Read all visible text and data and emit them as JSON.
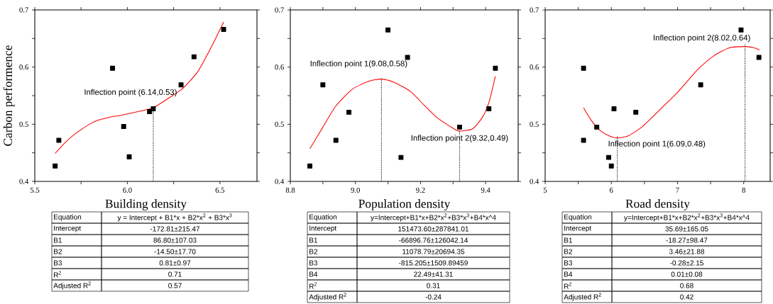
{
  "chart_data": [
    {
      "type": "scatter",
      "xlabel": "Building density",
      "ylabel": "Carbon performence",
      "xlim": [
        5.5,
        6.7
      ],
      "ylim": [
        0.4,
        0.7
      ],
      "xticks": [
        5.5,
        {
          "value": 5.75,
          "label": null
        },
        {
          "value": 6,
          "label": "6.0"
        },
        {
          "value": 6.25,
          "label": null
        },
        6.5
      ],
      "yticks": [
        0.4,
        {
          "value": 0.45,
          "label": null
        },
        0.5,
        {
          "value": 0.55,
          "label": null
        },
        0.6,
        {
          "value": 0.65,
          "label": null
        },
        0.7
      ],
      "series": [
        {
          "type": "scatter",
          "color": "#000000",
          "marker": "square",
          "x": [
            5.61,
            5.63,
            5.92,
            5.98,
            6.01,
            6.12,
            6.14,
            6.29,
            6.36,
            6.52
          ],
          "values": [
            0.427,
            0.472,
            0.598,
            0.496,
            0.443,
            0.522,
            0.527,
            0.569,
            0.618,
            0.666
          ]
        },
        {
          "type": "line",
          "color": "#ff0000",
          "marker": "none",
          "x": [
            5.61,
            5.67,
            5.73,
            5.79,
            5.84,
            5.9,
            5.97,
            6.07,
            6.14,
            6.22,
            6.3,
            6.38,
            6.45,
            6.52
          ],
          "values": [
            0.449,
            0.47,
            0.486,
            0.499,
            0.507,
            0.512,
            0.516,
            0.523,
            0.529,
            0.545,
            0.563,
            0.592,
            0.633,
            0.679
          ]
        },
        {
          "type": "line",
          "color": "#000000",
          "marker": "none",
          "line_style": "dotted",
          "x": [
            6.14,
            6.14
          ],
          "values": [
            0.4,
            0.53
          ]
        }
      ],
      "annotations": [
        {
          "text": "Inflection point (6.14,0.53)",
          "x": 6.14,
          "y": 0.53
        },
        "Equation",
        "y = Intercept + B1*x + B2*x$^{2}$ + B3*x$^{3}$",
        "Intercept",
        "-172.81±215.47",
        "B1",
        "86.80±107.03",
        "B2",
        "-14.50±17.70",
        "B3",
        "0.81±0.97",
        "R$^{2}$",
        "0.71",
        "Adjusted R$^{2}$",
        "0.57"
      ]
    },
    {
      "type": "scatter",
      "xlabel": "Population density",
      "xlim": [
        8.8,
        9.5
      ],
      "ylim": [
        0.4,
        0.7
      ],
      "xticks": [
        8.8,
        {
          "value": 8.9,
          "label": null
        },
        {
          "value": 9,
          "label": "9.0"
        },
        {
          "value": 9.1,
          "label": null
        },
        9.2,
        {
          "value": 9.3,
          "label": null
        },
        9.4
      ],
      "yticks": [
        0.4,
        {
          "value": 0.45,
          "label": null
        },
        0.5,
        {
          "value": 0.55,
          "label": null
        },
        0.6,
        {
          "value": 0.65,
          "label": null
        },
        0.7
      ],
      "series": [
        {
          "type": "scatter",
          "color": "#000000",
          "marker": "square",
          "x": [
            8.86,
            8.9,
            8.94,
            8.98,
            9.1,
            9.14,
            9.16,
            9.32,
            9.41,
            9.43
          ],
          "values": [
            0.427,
            0.569,
            0.472,
            0.521,
            0.665,
            0.442,
            0.617,
            0.495,
            0.527,
            0.598
          ]
        },
        {
          "type": "line",
          "color": "#ff0000",
          "marker": "none",
          "x": [
            8.86,
            8.9,
            8.94,
            8.99,
            9.04,
            9.08,
            9.12,
            9.17,
            9.21,
            9.25,
            9.3,
            9.32,
            9.36,
            9.39,
            9.41,
            9.43
          ],
          "values": [
            0.457,
            0.495,
            0.532,
            0.561,
            0.575,
            0.579,
            0.573,
            0.557,
            0.534,
            0.512,
            0.493,
            0.488,
            0.492,
            0.512,
            0.538,
            0.584
          ]
        },
        {
          "type": "line",
          "color": "#000000",
          "marker": "none",
          "line_style": "dotted",
          "x": [
            9.08,
            9.08
          ],
          "values": [
            0.4,
            0.58
          ]
        },
        {
          "type": "line",
          "color": "#000000",
          "marker": "none",
          "line_style": "dotted",
          "x": [
            9.32,
            9.32
          ],
          "values": [
            0.4,
            0.49
          ]
        }
      ],
      "annotations": [
        {
          "text": "Inflection point 1(9.08,0.58)",
          "x": 9.08,
          "y": 0.58
        },
        {
          "text": "Inflection point 2(9.32,0.49)",
          "x": 9.32,
          "y": 0.49
        },
        "Equation",
        "y=Intercept+B1*x+B2*x$^{2}$+B3*x$^{3}$+B4*x^4",
        "Intercept",
        "151473.60±287841.01",
        "B1",
        "-66896.76±126042.14",
        "B2",
        "11078.79±20694.35",
        "B3",
        "-815.205±1509.89459",
        "B4",
        "22.49±41.31",
        "R$^{2}$",
        "0.31",
        "Adjusted R$^{2}$",
        "-0.24"
      ]
    },
    {
      "type": "scatter",
      "xlabel": "Road density",
      "xlim": [
        5,
        8.4
      ],
      "ylim": [
        0.4,
        0.7
      ],
      "xticks": [
        5,
        {
          "value": 5.5,
          "label": null
        },
        6,
        {
          "value": 6.5,
          "label": null
        },
        7,
        {
          "value": 7.5,
          "label": null
        },
        8
      ],
      "yticks": [
        0.4,
        {
          "value": 0.45,
          "label": null
        },
        0.5,
        {
          "value": 0.55,
          "label": null
        },
        0.6,
        {
          "value": 0.65,
          "label": null
        },
        0.7
      ],
      "series": [
        {
          "type": "scatter",
          "color": "#000000",
          "marker": "square",
          "x": [
            5.58,
            5.58,
            5.78,
            5.96,
            6.0,
            6.04,
            6.37,
            7.35,
            7.96,
            8.23
          ],
          "values": [
            0.598,
            0.472,
            0.495,
            0.442,
            0.427,
            0.527,
            0.521,
            0.569,
            0.665,
            0.617
          ]
        },
        {
          "type": "line",
          "color": "#ff0000",
          "marker": "none",
          "x": [
            5.58,
            5.69,
            5.83,
            5.98,
            6.09,
            6.26,
            6.47,
            6.73,
            7.01,
            7.3,
            7.54,
            7.79,
            8.02,
            8.15,
            8.24
          ],
          "values": [
            0.529,
            0.508,
            0.489,
            0.479,
            0.476,
            0.48,
            0.496,
            0.525,
            0.557,
            0.595,
            0.619,
            0.634,
            0.636,
            0.634,
            0.63
          ]
        },
        {
          "type": "line",
          "color": "#000000",
          "marker": "none",
          "line_style": "dotted",
          "x": [
            6.09,
            6.09
          ],
          "values": [
            0.4,
            0.48
          ]
        },
        {
          "type": "line",
          "color": "#000000",
          "marker": "none",
          "line_style": "dotted",
          "x": [
            8.02,
            8.02
          ],
          "values": [
            0.4,
            0.64
          ]
        }
      ],
      "annotations": [
        {
          "text": "Inflection point 1(6.09,0.48)",
          "x": 6.09,
          "y": 0.48
        },
        {
          "text": "Inflection point 2(8.02,0.64)",
          "x": 8.02,
          "y": 0.64
        },
        "Equation",
        "y=Intercept+B1*x+B2*x$^{2}$+B3*x$^{3}$+B4*x^4",
        "Intercept",
        "35.69±165.05",
        "B1",
        "-18.27±98.47",
        "B2",
        "3.46±21.88",
        "B3",
        "-0.28±2.15",
        "B4",
        "0.01±0.08",
        "R$^{2}$",
        "0.68",
        "Adjusted R$^{2}$",
        "0.42"
      ]
    }
  ]
}
